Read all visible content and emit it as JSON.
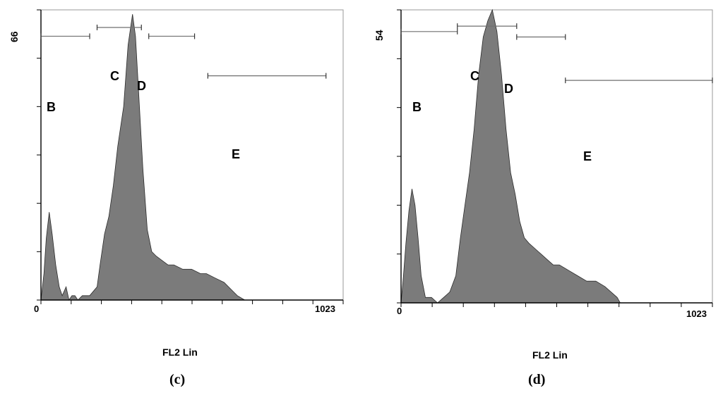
{
  "chart_data": [
    {
      "type": "area",
      "panel_label": "(c)",
      "xlabel": "FL2 Lin",
      "x_tick_labels": [
        "0",
        "1023"
      ],
      "y_top_label": "66",
      "xlim": [
        0,
        1023
      ],
      "ylim": [
        0,
        66
      ],
      "fill_color": "#7b7b7b",
      "gate_labels": [
        "B",
        "C",
        "D",
        "E"
      ],
      "gates": [
        {
          "x1": 0,
          "x2": 165,
          "y": 60
        },
        {
          "x1": 190,
          "x2": 340,
          "y": 62
        },
        {
          "x1": 365,
          "x2": 520,
          "y": 60
        },
        {
          "x1": 565,
          "x2": 965,
          "y": 51
        }
      ],
      "histogram": {
        "x": [
          0,
          10,
          18,
          28,
          38,
          50,
          62,
          72,
          85,
          95,
          105,
          115,
          125,
          140,
          165,
          190,
          200,
          215,
          230,
          245,
          260,
          280,
          295,
          310,
          320,
          330,
          345,
          360,
          375,
          390,
          410,
          430,
          450,
          480,
          510,
          540,
          560,
          590,
          620,
          650,
          665,
          690,
          1023
        ],
        "y": [
          0,
          6,
          14,
          20,
          15,
          8,
          3,
          1,
          3,
          0,
          1,
          1,
          0,
          1,
          1,
          3,
          8,
          15,
          19,
          26,
          35,
          44,
          58,
          65,
          60,
          48,
          30,
          16,
          11,
          10,
          9,
          8,
          8,
          7,
          7,
          6,
          6,
          5,
          4,
          2,
          1,
          0,
          0
        ]
      }
    },
    {
      "type": "area",
      "panel_label": "(d)",
      "xlabel": "FL2 Lin",
      "x_tick_labels": [
        "0",
        "1023"
      ],
      "y_top_label": "54",
      "xlim": [
        0,
        1023
      ],
      "ylim": [
        0,
        54
      ],
      "fill_color": "#7b7b7b",
      "gate_labels": [
        "B",
        "C",
        "D",
        "E"
      ],
      "gates": [
        {
          "x1": 0,
          "x2": 185,
          "y": 50
        },
        {
          "x1": 185,
          "x2": 380,
          "y": 51
        },
        {
          "x1": 380,
          "x2": 540,
          "y": 49
        },
        {
          "x1": 540,
          "x2": 1023,
          "y": 41
        }
      ],
      "histogram": {
        "x": [
          0,
          8,
          16,
          26,
          36,
          46,
          56,
          66,
          80,
          100,
          120,
          140,
          160,
          180,
          195,
          210,
          225,
          240,
          255,
          270,
          285,
          300,
          315,
          330,
          345,
          360,
          375,
          390,
          405,
          420,
          440,
          460,
          480,
          500,
          520,
          550,
          580,
          610,
          640,
          670,
          690,
          710,
          720,
          1023
        ],
        "y": [
          0,
          5,
          11,
          17,
          21,
          18,
          12,
          5,
          1,
          1,
          0,
          1,
          2,
          5,
          12,
          18,
          24,
          32,
          42,
          49,
          52,
          54,
          50,
          42,
          32,
          24,
          20,
          15,
          12,
          11,
          10,
          9,
          8,
          7,
          7,
          6,
          5,
          4,
          4,
          3,
          2,
          1,
          0,
          0
        ]
      }
    }
  ]
}
